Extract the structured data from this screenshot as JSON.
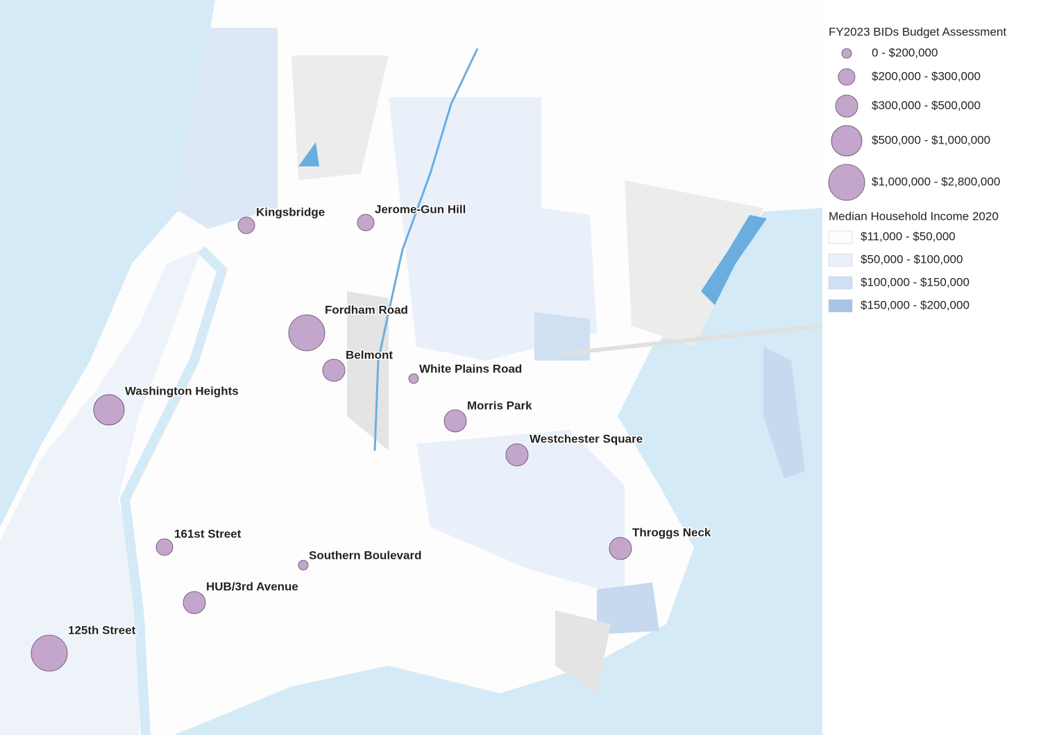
{
  "legend": {
    "budget": {
      "title": "FY2023 BIDs Budget Assessment",
      "items": [
        "0 - $200,000",
        "$200,000 - $300,000",
        "$300,000 - $500,000",
        "$500,000 - $1,000,000",
        "$1,000,000 - $2,800,000"
      ]
    },
    "income": {
      "title": "Median Household Income 2020",
      "items": [
        "$11,000 - $50,000",
        "$50,000 - $100,000",
        "$100,000 - $150,000",
        "$150,000 - $200,000"
      ]
    }
  },
  "sites": [
    {
      "label": "Kingsbridge"
    },
    {
      "label": "Jerome-Gun Hill"
    },
    {
      "label": "Fordham Road"
    },
    {
      "label": "Belmont"
    },
    {
      "label": "White Plains Road"
    },
    {
      "label": "Washington Heights"
    },
    {
      "label": "Morris Park"
    },
    {
      "label": "Westchester Square"
    },
    {
      "label": "Throggs Neck"
    },
    {
      "label": "161st Street"
    },
    {
      "label": "Southern Boulevard"
    },
    {
      "label": "HUB/3rd Avenue"
    },
    {
      "label": "125th Street"
    }
  ]
}
